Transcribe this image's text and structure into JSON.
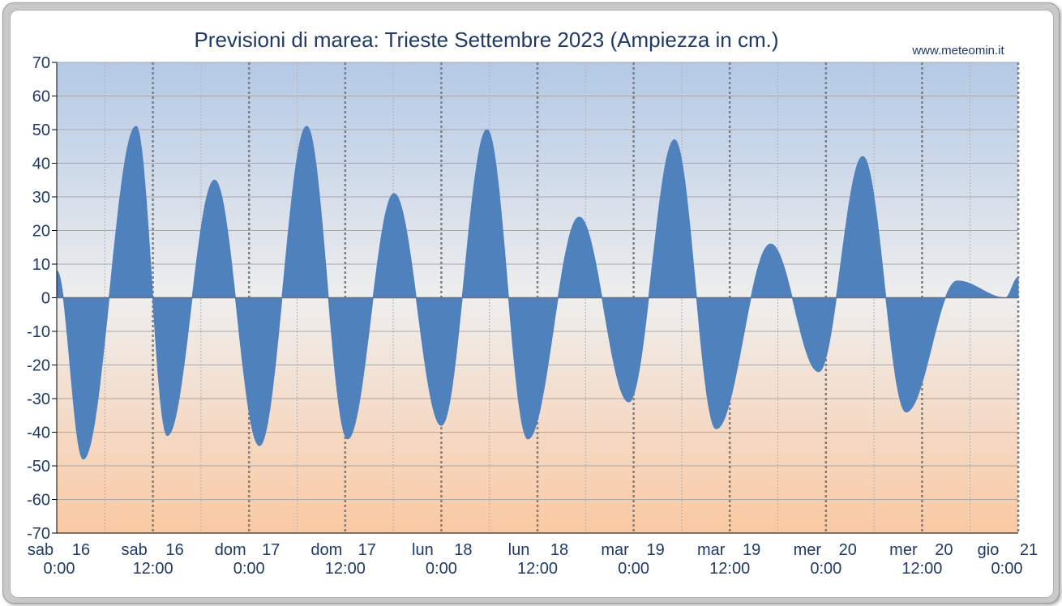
{
  "chart_data": {
    "type": "area",
    "title": "Previsioni di marea: Trieste Settembre 2023 (Ampiezza in cm.)",
    "source_label": "www.meteomin.it",
    "ylim": [
      -70,
      70
    ],
    "yticks": [
      70,
      60,
      50,
      40,
      30,
      20,
      10,
      0,
      -10,
      -20,
      -30,
      -40,
      -50,
      -60,
      -70
    ],
    "xlim_hours": [
      0,
      120
    ],
    "xticks": [
      {
        "hour": 0,
        "day": "sab",
        "date": "16",
        "time": "0:00"
      },
      {
        "hour": 12,
        "day": "sab",
        "date": "16",
        "time": "12:00"
      },
      {
        "hour": 24,
        "day": "dom",
        "date": "17",
        "time": "0:00"
      },
      {
        "hour": 36,
        "day": "dom",
        "date": "17",
        "time": "12:00"
      },
      {
        "hour": 48,
        "day": "lun",
        "date": "18",
        "time": "0:00"
      },
      {
        "hour": 60,
        "day": "lun",
        "date": "18",
        "time": "12:00"
      },
      {
        "hour": 72,
        "day": "mar",
        "date": "19",
        "time": "0:00"
      },
      {
        "hour": 84,
        "day": "mar",
        "date": "19",
        "time": "12:00"
      },
      {
        "hour": 96,
        "day": "mer",
        "date": "20",
        "time": "0:00"
      },
      {
        "hour": 108,
        "day": "mer",
        "date": "20",
        "time": "12:00"
      },
      {
        "hour": 120,
        "day": "gio",
        "date": "21",
        "time": "0:00"
      }
    ],
    "series": [
      {
        "color": "#4f81bd",
        "x_hours": [
          0,
          3.3,
          9.9,
          13.8,
          19.7,
          25.3,
          31.2,
          36.3,
          42.1,
          48.0,
          53.7,
          58.8,
          65.2,
          71.4,
          77.1,
          82.3,
          89.1,
          95.1,
          100.6,
          106.0,
          112.4,
          118.4,
          120
        ],
        "values": [
          8,
          -48,
          51,
          -41,
          35,
          -44,
          51,
          -42,
          31,
          -38,
          50,
          -42,
          24,
          -31,
          47,
          -39,
          16,
          -22,
          42,
          -34,
          5,
          0,
          6
        ]
      }
    ],
    "background_gradient": {
      "top": "#b4c9e6",
      "middle": "#eeeeee",
      "bottom": "#fac9a3"
    },
    "grid": true
  }
}
